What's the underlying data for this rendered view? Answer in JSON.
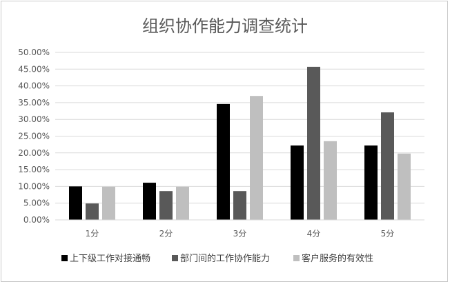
{
  "chart_data": {
    "type": "bar",
    "title": "组织协作能力调查统计",
    "categories": [
      "1分",
      "2分",
      "3分",
      "4分",
      "5分"
    ],
    "series": [
      {
        "name": "上下级工作对接通畅",
        "color": "#000000",
        "values": [
          10.0,
          11.1,
          34.6,
          22.2,
          22.2
        ]
      },
      {
        "name": "部门间的工作协作能力",
        "color": "#595959",
        "values": [
          4.9,
          8.6,
          8.6,
          45.7,
          32.1
        ]
      },
      {
        "name": "客户服务的有效性",
        "color": "#bfbfbf",
        "values": [
          9.9,
          9.9,
          37.0,
          23.5,
          19.8
        ]
      }
    ],
    "yticks": [
      "0.00%",
      "5.00%",
      "10.00%",
      "15.00%",
      "20.00%",
      "25.00%",
      "30.00%",
      "35.00%",
      "40.00%",
      "45.00%",
      "50.00%"
    ],
    "ylim": [
      0,
      50
    ],
    "grid": true,
    "legend_position": "bottom"
  }
}
